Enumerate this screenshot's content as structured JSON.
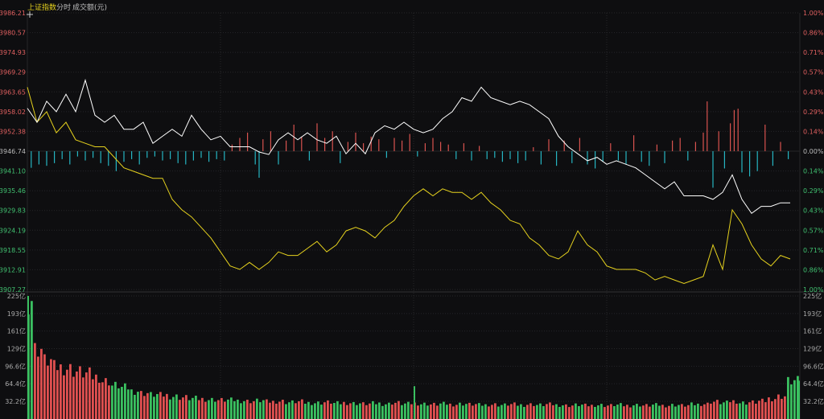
{
  "header": {
    "index_name": "上证指数",
    "tab_time": "分时",
    "tab_volume": "成交额(元)"
  },
  "colors": {
    "background": "#0e0e10",
    "up": "#d9534f",
    "down": "#26b5c2",
    "index_line": "#ffffff",
    "avg_line": "#e6d21e",
    "grid": "#262629",
    "vol_up": "#e05050",
    "vol_down": "#3ac060",
    "highlight": "#e6d21e"
  },
  "chart_data": {
    "type": "line",
    "price_axis": {
      "ticks": [
        "3986.21",
        "3980.57",
        "3974.93",
        "3969.29",
        "3963.65",
        "3958.02",
        "3952.38",
        "3946.74",
        "3941.10",
        "3935.46",
        "3929.83",
        "3924.19",
        "3918.55",
        "3912.91",
        "3907.27"
      ],
      "base": 3946.74,
      "range": [
        3907.27,
        3986.21
      ]
    },
    "pct_axis": {
      "ticks": [
        "1.00%",
        "0.86%",
        "0.71%",
        "0.57%",
        "0.43%",
        "0.29%",
        "0.14%",
        "0.00%",
        "0.14%",
        "0.29%",
        "0.43%",
        "0.57%",
        "0.71%",
        "0.86%",
        "1.00%"
      ]
    },
    "volume_axis": {
      "ticks": [
        "225亿",
        "193亿",
        "161亿",
        "129亿",
        "96.6亿",
        "64.4亿",
        "32.2亿"
      ],
      "max": 225
    },
    "index_series": [
      [
        0,
        3959
      ],
      [
        5,
        3955
      ],
      [
        10,
        3961
      ],
      [
        15,
        3958
      ],
      [
        20,
        3963
      ],
      [
        25,
        3958
      ],
      [
        30,
        3967
      ],
      [
        35,
        3957
      ],
      [
        40,
        3955
      ],
      [
        45,
        3957
      ],
      [
        50,
        3953
      ],
      [
        55,
        3953
      ],
      [
        60,
        3955
      ],
      [
        65,
        3949
      ],
      [
        70,
        3951
      ],
      [
        75,
        3953
      ],
      [
        80,
        3951
      ],
      [
        85,
        3957
      ],
      [
        90,
        3953
      ],
      [
        95,
        3950
      ],
      [
        100,
        3951
      ],
      [
        105,
        3948
      ],
      [
        110,
        3948
      ],
      [
        115,
        3948
      ],
      [
        120,
        3946.5
      ],
      [
        125,
        3945.8
      ],
      [
        130,
        3950
      ],
      [
        135,
        3952
      ],
      [
        140,
        3950
      ],
      [
        145,
        3952
      ],
      [
        150,
        3950
      ],
      [
        155,
        3949
      ],
      [
        160,
        3951
      ],
      [
        165,
        3946
      ],
      [
        170,
        3949
      ],
      [
        175,
        3946
      ],
      [
        180,
        3952
      ],
      [
        185,
        3954
      ],
      [
        190,
        3953
      ],
      [
        195,
        3955
      ],
      [
        200,
        3953
      ],
      [
        205,
        3952
      ],
      [
        210,
        3953
      ],
      [
        215,
        3956
      ],
      [
        220,
        3958
      ],
      [
        225,
        3962
      ],
      [
        230,
        3961
      ],
      [
        235,
        3965
      ],
      [
        240,
        3962
      ],
      [
        245,
        3961
      ],
      [
        250,
        3960
      ],
      [
        255,
        3961
      ],
      [
        260,
        3960
      ],
      [
        265,
        3958
      ],
      [
        270,
        3956
      ],
      [
        275,
        3951
      ],
      [
        280,
        3948
      ],
      [
        285,
        3946
      ],
      [
        290,
        3944
      ],
      [
        295,
        3945
      ],
      [
        300,
        3943
      ],
      [
        305,
        3944
      ],
      [
        310,
        3943
      ],
      [
        315,
        3942
      ],
      [
        320,
        3940
      ],
      [
        325,
        3938
      ],
      [
        330,
        3936
      ],
      [
        335,
        3938
      ],
      [
        340,
        3934
      ],
      [
        345,
        3934
      ],
      [
        350,
        3934
      ],
      [
        355,
        3933
      ],
      [
        360,
        3935
      ],
      [
        365,
        3940
      ],
      [
        370,
        3933
      ],
      [
        375,
        3929
      ],
      [
        380,
        3931
      ],
      [
        385,
        3931
      ],
      [
        390,
        3932
      ],
      [
        395,
        3932
      ]
    ],
    "avg_series": [
      [
        0,
        3965
      ],
      [
        5,
        3955
      ],
      [
        10,
        3958
      ],
      [
        15,
        3952
      ],
      [
        20,
        3955
      ],
      [
        25,
        3950
      ],
      [
        30,
        3949
      ],
      [
        35,
        3948
      ],
      [
        40,
        3948
      ],
      [
        45,
        3945
      ],
      [
        50,
        3942
      ],
      [
        55,
        3941
      ],
      [
        60,
        3940
      ],
      [
        65,
        3939
      ],
      [
        70,
        3939
      ],
      [
        75,
        3933
      ],
      [
        80,
        3930
      ],
      [
        85,
        3928
      ],
      [
        90,
        3925
      ],
      [
        95,
        3922
      ],
      [
        100,
        3918
      ],
      [
        105,
        3914
      ],
      [
        110,
        3913
      ],
      [
        115,
        3915
      ],
      [
        120,
        3913
      ],
      [
        125,
        3915
      ],
      [
        130,
        3918
      ],
      [
        135,
        3917
      ],
      [
        140,
        3917
      ],
      [
        145,
        3919
      ],
      [
        150,
        3921
      ],
      [
        155,
        3918
      ],
      [
        160,
        3920
      ],
      [
        165,
        3924
      ],
      [
        170,
        3925
      ],
      [
        175,
        3924
      ],
      [
        180,
        3922
      ],
      [
        185,
        3925
      ],
      [
        190,
        3927
      ],
      [
        195,
        3931
      ],
      [
        200,
        3934
      ],
      [
        205,
        3936
      ],
      [
        210,
        3934
      ],
      [
        215,
        3936
      ],
      [
        220,
        3935
      ],
      [
        225,
        3935
      ],
      [
        230,
        3933
      ],
      [
        235,
        3935
      ],
      [
        240,
        3932
      ],
      [
        245,
        3930
      ],
      [
        250,
        3927
      ],
      [
        255,
        3926
      ],
      [
        260,
        3922
      ],
      [
        265,
        3920
      ],
      [
        270,
        3917
      ],
      [
        275,
        3916
      ],
      [
        280,
        3918
      ],
      [
        285,
        3924
      ],
      [
        290,
        3920
      ],
      [
        295,
        3918
      ],
      [
        300,
        3914
      ],
      [
        305,
        3913
      ],
      [
        310,
        3913
      ],
      [
        315,
        3913
      ],
      [
        320,
        3912
      ],
      [
        325,
        3910
      ],
      [
        330,
        3911
      ],
      [
        335,
        3910
      ],
      [
        340,
        3909
      ],
      [
        345,
        3910
      ],
      [
        350,
        3911
      ],
      [
        355,
        3920
      ],
      [
        360,
        3913
      ],
      [
        365,
        3930
      ],
      [
        370,
        3926
      ],
      [
        375,
        3920
      ],
      [
        380,
        3916
      ],
      [
        385,
        3914
      ],
      [
        390,
        3917
      ],
      [
        395,
        3916
      ]
    ],
    "volume": [
      {
        "t": 0,
        "v": 225,
        "c": "down"
      },
      {
        "t": 5,
        "v": 130,
        "c": "up"
      },
      {
        "t": 10,
        "v": 108,
        "c": "up"
      },
      {
        "t": 15,
        "v": 96,
        "c": "up"
      },
      {
        "t": 20,
        "v": 94,
        "c": "up"
      },
      {
        "t": 25,
        "v": 88,
        "c": "up"
      },
      {
        "t": 30,
        "v": 84,
        "c": "up"
      },
      {
        "t": 35,
        "v": 78,
        "c": "up"
      },
      {
        "t": 40,
        "v": 70,
        "c": "up"
      },
      {
        "t": 45,
        "v": 62,
        "c": "down"
      },
      {
        "t": 50,
        "v": 58,
        "c": "down"
      },
      {
        "t": 55,
        "v": 52,
        "c": "down"
      },
      {
        "t": 60,
        "v": 48,
        "c": "up"
      },
      {
        "t": 65,
        "v": 45,
        "c": "down"
      },
      {
        "t": 70,
        "v": 44,
        "c": "up"
      },
      {
        "t": 75,
        "v": 42,
        "c": "down"
      },
      {
        "t": 80,
        "v": 40,
        "c": "up"
      },
      {
        "t": 85,
        "v": 38,
        "c": "down"
      },
      {
        "t": 90,
        "v": 37,
        "c": "up"
      },
      {
        "t": 95,
        "v": 36,
        "c": "down"
      },
      {
        "t": 100,
        "v": 35,
        "c": "up"
      },
      {
        "t": 105,
        "v": 35,
        "c": "down"
      },
      {
        "t": 110,
        "v": 34,
        "c": "down"
      },
      {
        "t": 115,
        "v": 33,
        "c": "up"
      },
      {
        "t": 120,
        "v": 34,
        "c": "down"
      },
      {
        "t": 125,
        "v": 32,
        "c": "up"
      },
      {
        "t": 130,
        "v": 33,
        "c": "up"
      },
      {
        "t": 135,
        "v": 31,
        "c": "down"
      },
      {
        "t": 140,
        "v": 32,
        "c": "up"
      },
      {
        "t": 145,
        "v": 30,
        "c": "down"
      },
      {
        "t": 150,
        "v": 30,
        "c": "down"
      },
      {
        "t": 155,
        "v": 31,
        "c": "up"
      },
      {
        "t": 160,
        "v": 29,
        "c": "down"
      },
      {
        "t": 165,
        "v": 30,
        "c": "up"
      },
      {
        "t": 170,
        "v": 29,
        "c": "down"
      },
      {
        "t": 175,
        "v": 28,
        "c": "up"
      },
      {
        "t": 180,
        "v": 29,
        "c": "down"
      },
      {
        "t": 185,
        "v": 28,
        "c": "down"
      },
      {
        "t": 190,
        "v": 30,
        "c": "up"
      },
      {
        "t": 195,
        "v": 28,
        "c": "down"
      },
      {
        "t": 200,
        "v": 29,
        "c": "up"
      },
      {
        "t": 205,
        "v": 28,
        "c": "down"
      },
      {
        "t": 210,
        "v": 27,
        "c": "up"
      },
      {
        "t": 215,
        "v": 28,
        "c": "down"
      },
      {
        "t": 220,
        "v": 27,
        "c": "up"
      },
      {
        "t": 225,
        "v": 28,
        "c": "down"
      },
      {
        "t": 230,
        "v": 27,
        "c": "up"
      },
      {
        "t": 235,
        "v": 26,
        "c": "down"
      },
      {
        "t": 240,
        "v": 27,
        "c": "up"
      },
      {
        "t": 245,
        "v": 26,
        "c": "down"
      },
      {
        "t": 250,
        "v": 27,
        "c": "up"
      },
      {
        "t": 255,
        "v": 26,
        "c": "down"
      },
      {
        "t": 260,
        "v": 27,
        "c": "up"
      },
      {
        "t": 265,
        "v": 26,
        "c": "down"
      },
      {
        "t": 270,
        "v": 27,
        "c": "up"
      },
      {
        "t": 275,
        "v": 26,
        "c": "down"
      },
      {
        "t": 280,
        "v": 25,
        "c": "up"
      },
      {
        "t": 285,
        "v": 26,
        "c": "down"
      },
      {
        "t": 290,
        "v": 25,
        "c": "up"
      },
      {
        "t": 295,
        "v": 26,
        "c": "down"
      },
      {
        "t": 300,
        "v": 25,
        "c": "up"
      },
      {
        "t": 305,
        "v": 26,
        "c": "down"
      },
      {
        "t": 310,
        "v": 25,
        "c": "up"
      },
      {
        "t": 315,
        "v": 26,
        "c": "down"
      },
      {
        "t": 320,
        "v": 25,
        "c": "up"
      },
      {
        "t": 325,
        "v": 26,
        "c": "down"
      },
      {
        "t": 330,
        "v": 25,
        "c": "up"
      },
      {
        "t": 335,
        "v": 26,
        "c": "down"
      },
      {
        "t": 340,
        "v": 25,
        "c": "up"
      },
      {
        "t": 345,
        "v": 27,
        "c": "down"
      },
      {
        "t": 350,
        "v": 28,
        "c": "up"
      },
      {
        "t": 355,
        "v": 32,
        "c": "up"
      },
      {
        "t": 360,
        "v": 30,
        "c": "down"
      },
      {
        "t": 365,
        "v": 33,
        "c": "up"
      },
      {
        "t": 370,
        "v": 30,
        "c": "down"
      },
      {
        "t": 375,
        "v": 31,
        "c": "up"
      },
      {
        "t": 380,
        "v": 33,
        "c": "up"
      },
      {
        "t": 385,
        "v": 38,
        "c": "up"
      },
      {
        "t": 390,
        "v": 42,
        "c": "up"
      },
      {
        "t": 395,
        "v": 70,
        "c": "down"
      }
    ],
    "volume_spike": {
      "t": 200,
      "v": 60,
      "c": "down"
    },
    "diff_bars": [
      {
        "t": 2,
        "v": -0.25
      },
      {
        "t": 6,
        "v": -0.2
      },
      {
        "t": 10,
        "v": -0.22
      },
      {
        "t": 14,
        "v": -0.18
      },
      {
        "t": 18,
        "v": -0.12
      },
      {
        "t": 22,
        "v": -0.2
      },
      {
        "t": 26,
        "v": -0.08
      },
      {
        "t": 30,
        "v": -0.14
      },
      {
        "t": 34,
        "v": -0.1
      },
      {
        "t": 38,
        "v": -0.18
      },
      {
        "t": 42,
        "v": -0.22
      },
      {
        "t": 46,
        "v": -0.3
      },
      {
        "t": 50,
        "v": -0.16
      },
      {
        "t": 54,
        "v": -0.12
      },
      {
        "t": 58,
        "v": -0.2
      },
      {
        "t": 62,
        "v": -0.1
      },
      {
        "t": 66,
        "v": -0.08
      },
      {
        "t": 70,
        "v": -0.14
      },
      {
        "t": 74,
        "v": -0.12
      },
      {
        "t": 78,
        "v": -0.18
      },
      {
        "t": 82,
        "v": -0.2
      },
      {
        "t": 86,
        "v": -0.14
      },
      {
        "t": 90,
        "v": -0.1
      },
      {
        "t": 94,
        "v": -0.16
      },
      {
        "t": 98,
        "v": -0.12
      },
      {
        "t": 102,
        "v": -0.14
      },
      {
        "t": 106,
        "v": 0.1
      },
      {
        "t": 110,
        "v": 0.2
      },
      {
        "t": 114,
        "v": 0.28
      },
      {
        "t": 118,
        "v": -0.2
      },
      {
        "t": 120,
        "v": -0.4
      },
      {
        "t": 122,
        "v": 0.18
      },
      {
        "t": 126,
        "v": 0.3
      },
      {
        "t": 130,
        "v": -0.2
      },
      {
        "t": 134,
        "v": 0.16
      },
      {
        "t": 138,
        "v": 0.4
      },
      {
        "t": 142,
        "v": 0.22
      },
      {
        "t": 146,
        "v": -0.14
      },
      {
        "t": 150,
        "v": 0.42
      },
      {
        "t": 154,
        "v": 0.2
      },
      {
        "t": 158,
        "v": 0.3
      },
      {
        "t": 162,
        "v": -0.18
      },
      {
        "t": 166,
        "v": 0.14
      },
      {
        "t": 170,
        "v": 0.28
      },
      {
        "t": 174,
        "v": 0.12
      },
      {
        "t": 178,
        "v": 0.22
      },
      {
        "t": 182,
        "v": 0.18
      },
      {
        "t": 186,
        "v": -0.1
      },
      {
        "t": 190,
        "v": 0.2
      },
      {
        "t": 194,
        "v": 0.16
      },
      {
        "t": 198,
        "v": 0.26
      },
      {
        "t": 202,
        "v": -0.08
      },
      {
        "t": 206,
        "v": 0.12
      },
      {
        "t": 210,
        "v": 0.2
      },
      {
        "t": 214,
        "v": 0.14
      },
      {
        "t": 218,
        "v": 0.1
      },
      {
        "t": 222,
        "v": -0.12
      },
      {
        "t": 226,
        "v": 0.12
      },
      {
        "t": 230,
        "v": -0.14
      },
      {
        "t": 234,
        "v": 0.08
      },
      {
        "t": 238,
        "v": -0.12
      },
      {
        "t": 242,
        "v": -0.1
      },
      {
        "t": 246,
        "v": -0.16
      },
      {
        "t": 250,
        "v": -0.12
      },
      {
        "t": 254,
        "v": -0.18
      },
      {
        "t": 258,
        "v": -0.14
      },
      {
        "t": 262,
        "v": 0.06
      },
      {
        "t": 266,
        "v": -0.2
      },
      {
        "t": 270,
        "v": 0.18
      },
      {
        "t": 274,
        "v": -0.22
      },
      {
        "t": 278,
        "v": 0.16
      },
      {
        "t": 282,
        "v": -0.18
      },
      {
        "t": 286,
        "v": 0.2
      },
      {
        "t": 290,
        "v": -0.2
      },
      {
        "t": 294,
        "v": -0.26
      },
      {
        "t": 298,
        "v": -0.16
      },
      {
        "t": 302,
        "v": 0.12
      },
      {
        "t": 306,
        "v": -0.14
      },
      {
        "t": 310,
        "v": -0.2
      },
      {
        "t": 314,
        "v": 0.24
      },
      {
        "t": 318,
        "v": -0.16
      },
      {
        "t": 322,
        "v": -0.22
      },
      {
        "t": 326,
        "v": 0.1
      },
      {
        "t": 330,
        "v": -0.18
      },
      {
        "t": 334,
        "v": 0.16
      },
      {
        "t": 338,
        "v": 0.2
      },
      {
        "t": 342,
        "v": -0.14
      },
      {
        "t": 346,
        "v": 0.14
      },
      {
        "t": 350,
        "v": 0.28
      },
      {
        "t": 352,
        "v": 0.75
      },
      {
        "t": 355,
        "v": -0.55
      },
      {
        "t": 358,
        "v": 0.3
      },
      {
        "t": 361,
        "v": -0.26
      },
      {
        "t": 364,
        "v": 0.42
      },
      {
        "t": 366,
        "v": 0.62
      },
      {
        "t": 368,
        "v": 0.64
      },
      {
        "t": 370,
        "v": -0.32
      },
      {
        "t": 374,
        "v": -0.38
      },
      {
        "t": 378,
        "v": -0.3
      },
      {
        "t": 382,
        "v": 0.4
      },
      {
        "t": 386,
        "v": -0.22
      },
      {
        "t": 390,
        "v": 0.14
      },
      {
        "t": 394,
        "v": -0.12
      }
    ]
  }
}
